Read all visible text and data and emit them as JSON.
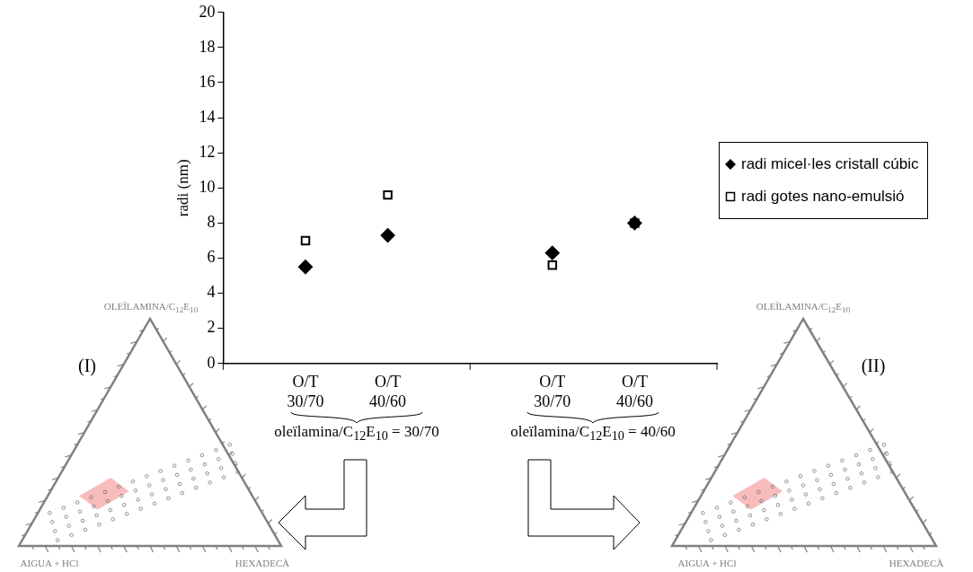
{
  "chart_data": {
    "type": "scatter",
    "ylabel": "radi (nm)",
    "categories": [
      null,
      "O/T 30/70",
      "O/T 40/60",
      null,
      "O/T 30/70",
      "O/T 40/60",
      null
    ],
    "series": [
      {
        "name": "radi micel·les cristall cúbic",
        "color": "#000000",
        "marker": "diamond",
        "values": [
          null,
          5.5,
          7.3,
          null,
          6.3,
          8.0,
          null
        ]
      },
      {
        "name": "radi gotes nano-emulsió",
        "color": "#000000",
        "marker": "square",
        "values": [
          null,
          7.0,
          9.6,
          null,
          5.6,
          8.0,
          null
        ]
      }
    ],
    "ylim": [
      0,
      20
    ],
    "yticks": [
      0,
      2,
      4,
      6,
      8,
      10,
      12,
      14,
      16,
      18,
      20
    ],
    "grid": false,
    "legend": "right",
    "annotations": [
      "oleïlamina/C$_{12}$E$_{10}$ = 30/70",
      "oleïlamina/C$_{12}$E$_{10}$ = 40/60",
      "(I)",
      "OLEÏLAMINA/C$_{12}$E$_{10}$",
      "AIGUA + HCl",
      "HEXADECÀ",
      "(II)",
      "OLEÏLAMINA/C$_{12}$E$_{10}$",
      "AIGUA + HCl",
      "HEXADECÀ"
    ]
  }
}
